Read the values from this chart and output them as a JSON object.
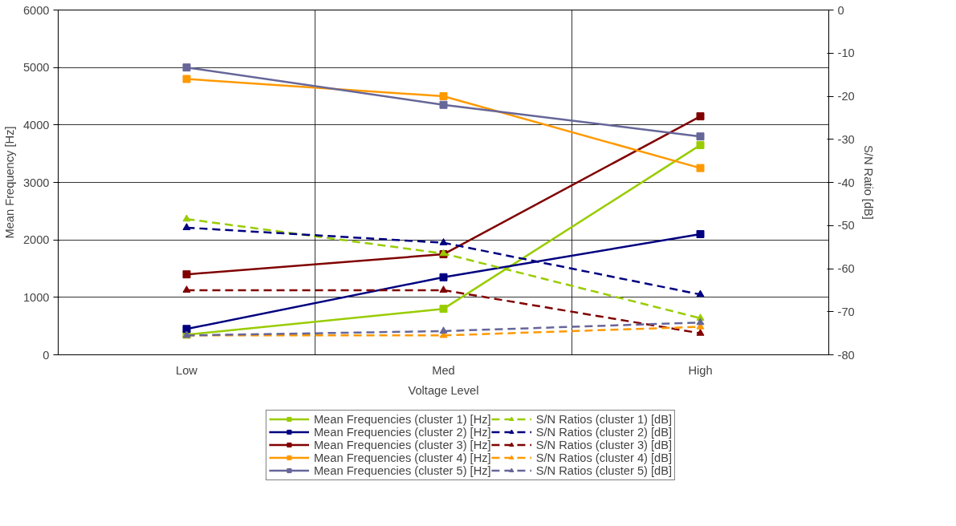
{
  "chart_data": {
    "type": "line",
    "xlabel": "Voltage Level",
    "ylabel": "Mean Frequency [Hz]",
    "y2label": "S/N Ratio [dB]",
    "categories": [
      "Low",
      "Med",
      "High"
    ],
    "ylim": [
      0,
      6000
    ],
    "yticks": [
      0,
      1000,
      2000,
      3000,
      4000,
      5000,
      6000
    ],
    "y2lim": [
      -80,
      0
    ],
    "y2ticks": [
      -80,
      -70,
      -60,
      -50,
      -40,
      -30,
      -20,
      -10,
      0
    ],
    "grid": true,
    "legend": "bottom",
    "series": [
      {
        "name": "Mean Frequencies (cluster 1) [Hz]",
        "color": "#99cc00",
        "values": [
          350,
          800,
          3650
        ],
        "marker": "square",
        "line_style": "solid"
      },
      {
        "name": "Mean Frequencies (cluster 2) [Hz]",
        "color": "#000080",
        "values": [
          450,
          1350,
          2100
        ],
        "marker": "square",
        "line_style": "solid"
      },
      {
        "name": "Mean Frequencies (cluster 3) [Hz]",
        "color": "#800000",
        "values": [
          1400,
          1750,
          4150
        ],
        "marker": "square",
        "line_style": "solid"
      },
      {
        "name": "Mean Frequencies (cluster 4) [Hz]",
        "color": "#ff9900",
        "values": [
          4800,
          4500,
          3250
        ],
        "marker": "square",
        "line_style": "solid"
      },
      {
        "name": "Mean Frequencies (cluster 5) [Hz]",
        "color": "#666699",
        "values": [
          5000,
          4350,
          3800
        ],
        "marker": "square",
        "line_style": "solid"
      },
      {
        "name": "S/N Ratios (cluster 1) [dB]",
        "color": "#99cc00",
        "values": [
          -48.5,
          -56.5,
          -71.5
        ],
        "marker": "triangle",
        "line_style": "dashed",
        "axis": "y2"
      },
      {
        "name": "S/N Ratios (cluster 2) [dB]",
        "color": "#000080",
        "values": [
          -50.5,
          -54,
          -66
        ],
        "marker": "triangle",
        "line_style": "dashed",
        "axis": "y2"
      },
      {
        "name": "S/N Ratios (cluster 3) [dB]",
        "color": "#800000",
        "values": [
          -65,
          -65,
          -75
        ],
        "marker": "triangle",
        "line_style": "dashed",
        "axis": "y2"
      },
      {
        "name": "S/N Ratios (cluster 4) [dB]",
        "color": "#ff9900",
        "values": [
          -75.5,
          -75.5,
          -73.5
        ],
        "marker": "triangle",
        "line_style": "dashed",
        "axis": "y2"
      },
      {
        "name": "S/N Ratios (cluster 5) [dB]",
        "color": "#666699",
        "values": [
          -75.5,
          -74.5,
          -72.5
        ],
        "marker": "triangle",
        "line_style": "dashed",
        "axis": "y2"
      }
    ]
  }
}
